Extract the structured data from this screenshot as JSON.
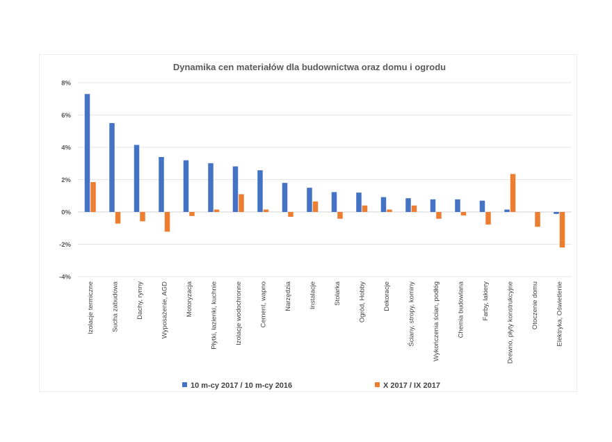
{
  "chart_data": {
    "type": "bar",
    "title": "Dynamika cen materiałów dla budownictwa oraz domu i ogrodu",
    "xlabel": "",
    "ylabel": "",
    "ylim": [
      -4,
      8
    ],
    "yticks": [
      "8%",
      "6%",
      "4%",
      "2%",
      "0%",
      "-2%",
      "-4%"
    ],
    "ytick_values": [
      8,
      6,
      4,
      2,
      0,
      -2,
      -4
    ],
    "grid": true,
    "legend": "bottom",
    "categories": [
      "Izolacje termiczne",
      "Sucha zabudowa",
      "Dachy, rynny",
      "Wyposażenie, AGD",
      "Motoryzacja",
      "Płytki, łazienki, kuchnie",
      "Izolacje wodochronne",
      "Cement, wapno",
      "Narzędzia",
      "Instalacje",
      "Stolarka",
      "Ogród, Hobby",
      "Dekoracje",
      "Ściany, stropy, kominy",
      "Wykończenia ścian, podłóg",
      "Chemia budowlana",
      "Farby, lakiery",
      "Drewno, płyty konstrukcyjne",
      "Otoczenie domu",
      "Elektryka, Oświetlenie"
    ],
    "series": [
      {
        "name": "10 m-cy 2017 / 10 m-cy 2016",
        "color": "#4472c4",
        "values": [
          7.3,
          5.5,
          4.15,
          3.4,
          3.2,
          3.02,
          2.82,
          2.58,
          1.8,
          1.5,
          1.23,
          1.2,
          0.92,
          0.85,
          0.78,
          0.78,
          0.7,
          0.15,
          0.0,
          -0.12
        ]
      },
      {
        "name": "X 2017 / IX 2017",
        "color": "#ed7d31",
        "values": [
          1.85,
          -0.72,
          -0.58,
          -1.22,
          -0.25,
          0.15,
          1.1,
          0.15,
          -0.3,
          0.65,
          -0.42,
          0.4,
          0.15,
          0.4,
          -0.42,
          -0.22,
          -0.78,
          2.35,
          -0.92,
          -2.2
        ]
      }
    ]
  }
}
